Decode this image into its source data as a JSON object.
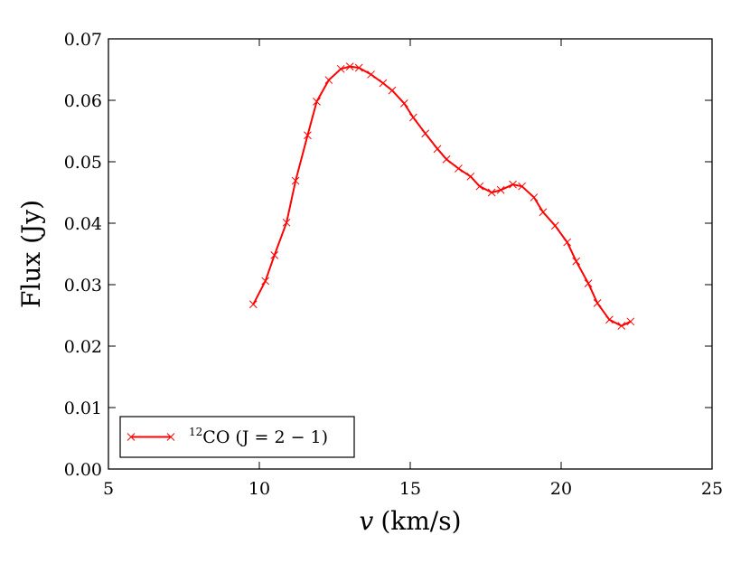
{
  "chart_data": {
    "type": "line",
    "xlabel": "v (km/s)",
    "xlabel_var": "v",
    "xlabel_unit": "(km/s)",
    "ylabel": "Flux (Jy)",
    "xlim": [
      5,
      25
    ],
    "ylim": [
      0.0,
      0.07
    ],
    "xticks": [
      5,
      10,
      15,
      20,
      25
    ],
    "xtick_labels": [
      "5",
      "10",
      "15",
      "20",
      "25"
    ],
    "yticks": [
      0.0,
      0.01,
      0.02,
      0.03,
      0.04,
      0.05,
      0.06,
      0.07
    ],
    "ytick_labels": [
      "0.00",
      "0.01",
      "0.02",
      "0.03",
      "0.04",
      "0.05",
      "0.06",
      "0.07"
    ],
    "grid": false,
    "legend_position": "lower-left",
    "series": [
      {
        "name": "12CO (J = 2 − 1)",
        "name_sup": "12",
        "name_main": "CO (J = 2 − 1)",
        "color": "#ff0000",
        "marker": "x",
        "x": [
          9.8,
          10.2,
          10.5,
          10.9,
          11.2,
          11.6,
          11.9,
          12.3,
          12.7,
          13.0,
          13.3,
          13.7,
          14.1,
          14.4,
          14.8,
          15.1,
          15.5,
          15.9,
          16.2,
          16.6,
          17.0,
          17.3,
          17.7,
          18.0,
          18.4,
          18.7,
          19.1,
          19.4,
          19.8,
          20.2,
          20.5,
          20.9,
          21.2,
          21.6,
          22.0,
          22.3
        ],
        "y": [
          0.0268,
          0.0306,
          0.0348,
          0.0401,
          0.0469,
          0.0543,
          0.0598,
          0.0633,
          0.0651,
          0.0655,
          0.0653,
          0.0642,
          0.0628,
          0.0616,
          0.0595,
          0.0572,
          0.0546,
          0.0521,
          0.0504,
          0.0489,
          0.0476,
          0.046,
          0.045,
          0.0454,
          0.0463,
          0.046,
          0.0442,
          0.0418,
          0.0396,
          0.0369,
          0.0338,
          0.0302,
          0.027,
          0.0243,
          0.0233,
          0.024
        ]
      }
    ]
  }
}
